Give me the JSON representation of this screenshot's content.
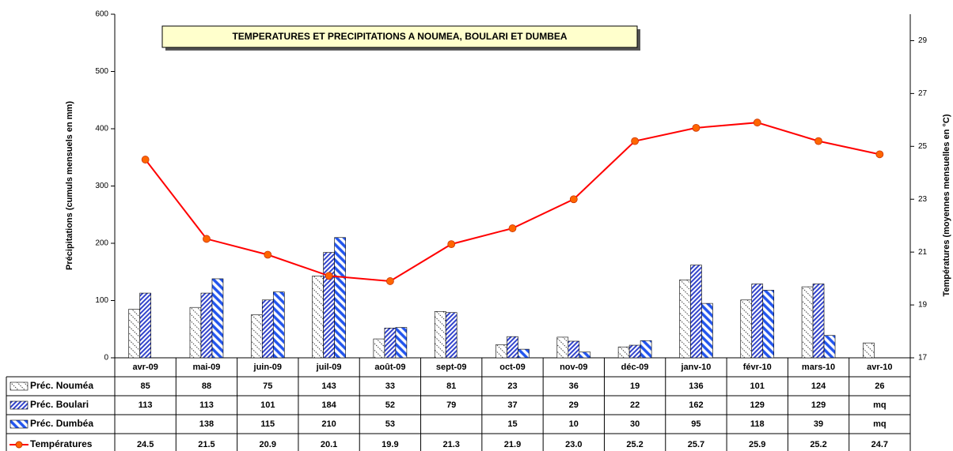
{
  "chart_data": {
    "type": "bar",
    "title": "TEMPERATURES ET PRECIPITATIONS A NOUMEA, BOULARI ET DUMBEA",
    "y_label": "Précipitations (cumuls mensuels en mm)",
    "y2_label": "Températures (moyennes mensuelles en °C)",
    "categories": [
      "avr-09",
      "mai-09",
      "juin-09",
      "juil-09",
      "août-09",
      "sept-09",
      "oct-09",
      "nov-09",
      "déc-09",
      "janv-10",
      "févr-10",
      "mars-10",
      "avr-10"
    ],
    "ylim": [
      0,
      600
    ],
    "yticks": [
      0,
      100,
      200,
      300,
      400,
      500,
      600
    ],
    "y2lim": [
      17,
      30
    ],
    "y2ticks": [
      17,
      19,
      21,
      23,
      25,
      27,
      29
    ],
    "series": [
      {
        "name": "Préc. Nouméa",
        "type": "bar",
        "color": "#404040",
        "values": [
          85,
          88,
          75,
          143,
          33,
          81,
          23,
          36,
          19,
          136,
          101,
          124,
          26
        ],
        "value_labels": [
          "85",
          "88",
          "75",
          "143",
          "33",
          "81",
          "23",
          "36",
          "19",
          "136",
          "101",
          "124",
          "26"
        ]
      },
      {
        "name": "Préc. Boulari",
        "type": "bar",
        "color": "#3344cc",
        "values": [
          113,
          113,
          101,
          184,
          52,
          79,
          37,
          29,
          22,
          162,
          129,
          129,
          null
        ],
        "value_labels": [
          "113",
          "113",
          "101",
          "184",
          "52",
          "79",
          "37",
          "29",
          "22",
          "162",
          "129",
          "129",
          "mq"
        ]
      },
      {
        "name": "Préc. Dumbéa",
        "type": "bar",
        "color": "#2255ee",
        "values": [
          null,
          138,
          115,
          210,
          53,
          null,
          15,
          10,
          30,
          95,
          118,
          39,
          null
        ],
        "value_labels": [
          null,
          "138",
          "115",
          "210",
          "53",
          null,
          "15",
          "10",
          "30",
          "95",
          "118",
          "39",
          "mq"
        ]
      },
      {
        "name": "Températures",
        "type": "line",
        "axis": "y2",
        "color": "#ff0000",
        "marker_color": "#ff6600",
        "values": [
          24.5,
          21.5,
          20.9,
          20.1,
          19.9,
          21.3,
          21.9,
          23.0,
          25.2,
          25.7,
          25.9,
          25.2,
          24.7
        ],
        "value_labels": [
          "24.5",
          "21.5",
          "20.9",
          "20.1",
          "19.9",
          "21.3",
          "21.9",
          "23.0",
          "25.2",
          "25.7",
          "25.9",
          "25.2",
          "24.7"
        ]
      }
    ]
  }
}
